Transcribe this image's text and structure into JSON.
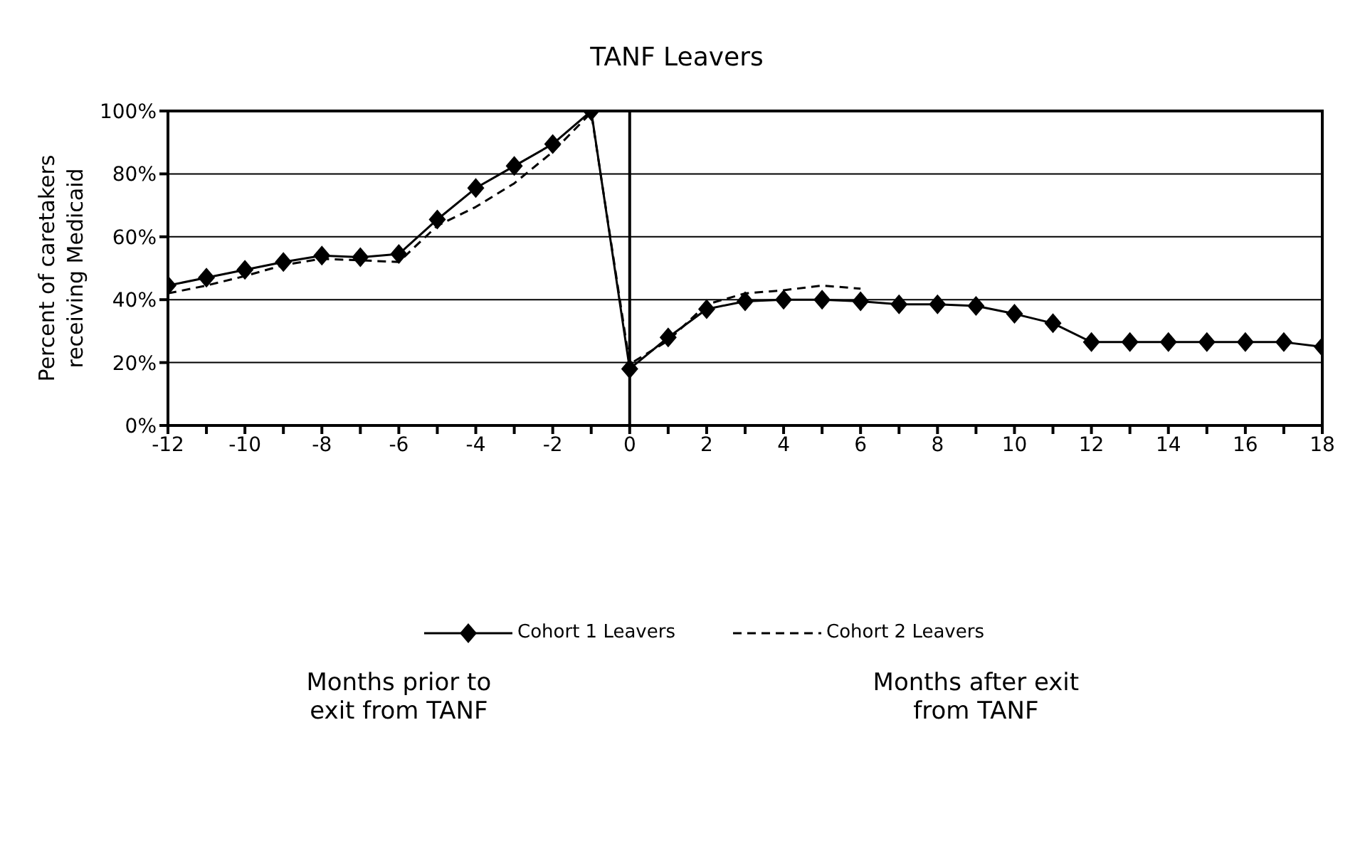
{
  "chart_data": {
    "type": "line",
    "title": "TANF Leavers",
    "ylabel": "Percent of caretakers receiving Medicaid",
    "annotations": [
      "Months prior to exit from TANF",
      "Months after exit from TANF"
    ],
    "x": [
      -12,
      -11,
      -10,
      -9,
      -8,
      -7,
      -6,
      -5,
      -4,
      -3,
      -2,
      -1,
      0,
      1,
      2,
      3,
      4,
      5,
      6,
      7,
      8,
      9,
      10,
      11,
      12,
      13,
      14,
      15,
      16,
      17,
      18
    ],
    "series": [
      {
        "name": "Cohort 1 Leavers",
        "color": "#000000",
        "marker": "diamond",
        "line_style": "solid",
        "values": [
          44.5,
          47,
          49.5,
          52,
          54,
          53.5,
          54.5,
          65.5,
          75.5,
          82.5,
          89.5,
          100,
          18,
          28,
          37,
          39.5,
          40,
          40,
          39.5,
          38.5,
          38.5,
          38,
          35.5,
          32.5,
          26.5,
          26.5,
          26.5,
          26.5,
          26.5,
          26.5,
          25
        ]
      },
      {
        "name": "Cohort 2 Leavers",
        "color": "#000000",
        "marker": "none",
        "line_style": "dashed",
        "values": [
          42,
          44.5,
          47.5,
          51,
          53,
          52.5,
          52,
          63.5,
          69.5,
          77,
          87,
          99.5,
          19.5,
          27,
          38.5,
          42,
          43,
          44.5,
          43.5,
          null,
          null,
          null,
          null,
          null,
          null,
          null,
          null,
          null,
          null,
          null,
          null
        ]
      }
    ],
    "xlim": [
      -12,
      18
    ],
    "xticks": [
      -12,
      {
        "value": -11,
        "label": null
      },
      -10,
      {
        "value": -9,
        "label": null
      },
      -8,
      {
        "value": -7,
        "label": null
      },
      -6,
      {
        "value": -5,
        "label": null
      },
      -4,
      {
        "value": -3,
        "label": null
      },
      -2,
      {
        "value": -1,
        "label": null
      },
      0,
      {
        "value": 1,
        "label": null
      },
      2,
      {
        "value": 3,
        "label": null
      },
      4,
      {
        "value": 5,
        "label": null
      },
      6,
      {
        "value": 7,
        "label": null
      },
      8,
      {
        "value": 9,
        "label": null
      },
      10,
      {
        "value": 11,
        "label": null
      },
      12,
      {
        "value": 13,
        "label": null
      },
      14,
      {
        "value": 15,
        "label": null
      },
      16,
      {
        "value": 17,
        "label": null
      },
      18
    ],
    "ylim": [
      0,
      100
    ],
    "yticks": [
      {
        "value": 0,
        "label": "0%"
      },
      {
        "value": 20,
        "label": "20%"
      },
      {
        "value": 40,
        "label": "40%"
      },
      {
        "value": 60,
        "label": "60%"
      },
      {
        "value": 80,
        "label": "80%"
      },
      {
        "value": 100,
        "label": "100%"
      }
    ],
    "ref_lines": [
      {
        "axis": "x",
        "value": 0,
        "color": "#000000"
      }
    ],
    "grid": "y",
    "legend": "bottom"
  }
}
